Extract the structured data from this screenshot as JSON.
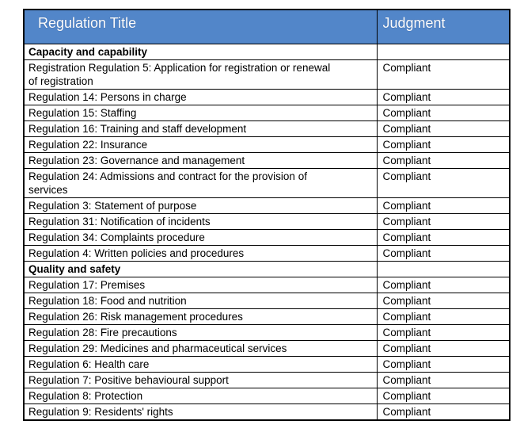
{
  "table": {
    "header": {
      "col1": "Regulation Title",
      "col2": "Judgment",
      "bg_color": "#5286c9",
      "text_color": "#ffffff"
    },
    "border_color": "#000000",
    "rows": [
      {
        "section": true,
        "title": "Capacity and capability",
        "judgment": ""
      },
      {
        "section": false,
        "title": "Registration Regulation 5: Application for registration or renewal of registration",
        "judgment": "Compliant"
      },
      {
        "section": false,
        "title": "Regulation 14: Persons in charge",
        "judgment": "Compliant"
      },
      {
        "section": false,
        "title": "Regulation 15: Staffing",
        "judgment": "Compliant"
      },
      {
        "section": false,
        "title": "Regulation 16: Training and staff development",
        "judgment": "Compliant"
      },
      {
        "section": false,
        "title": "Regulation 22: Insurance",
        "judgment": "Compliant"
      },
      {
        "section": false,
        "title": "Regulation 23: Governance and management",
        "judgment": "Compliant"
      },
      {
        "section": false,
        "title": "Regulation 24: Admissions and contract for the provision of services",
        "judgment": "Compliant"
      },
      {
        "section": false,
        "title": "Regulation 3: Statement of purpose",
        "judgment": "Compliant"
      },
      {
        "section": false,
        "title": "Regulation 31: Notification of incidents",
        "judgment": "Compliant"
      },
      {
        "section": false,
        "title": "Regulation 34: Complaints procedure",
        "judgment": "Compliant"
      },
      {
        "section": false,
        "title": "Regulation 4: Written policies and procedures",
        "judgment": "Compliant"
      },
      {
        "section": true,
        "title": "Quality and safety",
        "judgment": ""
      },
      {
        "section": false,
        "title": "Regulation 17: Premises",
        "judgment": "Compliant"
      },
      {
        "section": false,
        "title": "Regulation 18: Food and nutrition",
        "judgment": "Compliant"
      },
      {
        "section": false,
        "title": "Regulation 26: Risk management procedures",
        "judgment": "Compliant"
      },
      {
        "section": false,
        "title": "Regulation 28: Fire precautions",
        "judgment": "Compliant"
      },
      {
        "section": false,
        "title": "Regulation 29: Medicines and pharmaceutical services",
        "judgment": "Compliant"
      },
      {
        "section": false,
        "title": "Regulation 6: Health care",
        "judgment": "Compliant"
      },
      {
        "section": false,
        "title": "Regulation 7: Positive behavioural support",
        "judgment": "Compliant"
      },
      {
        "section": false,
        "title": "Regulation 8: Protection",
        "judgment": "Compliant"
      },
      {
        "section": false,
        "title": "Regulation 9: Residents' rights",
        "judgment": "Compliant"
      }
    ]
  }
}
